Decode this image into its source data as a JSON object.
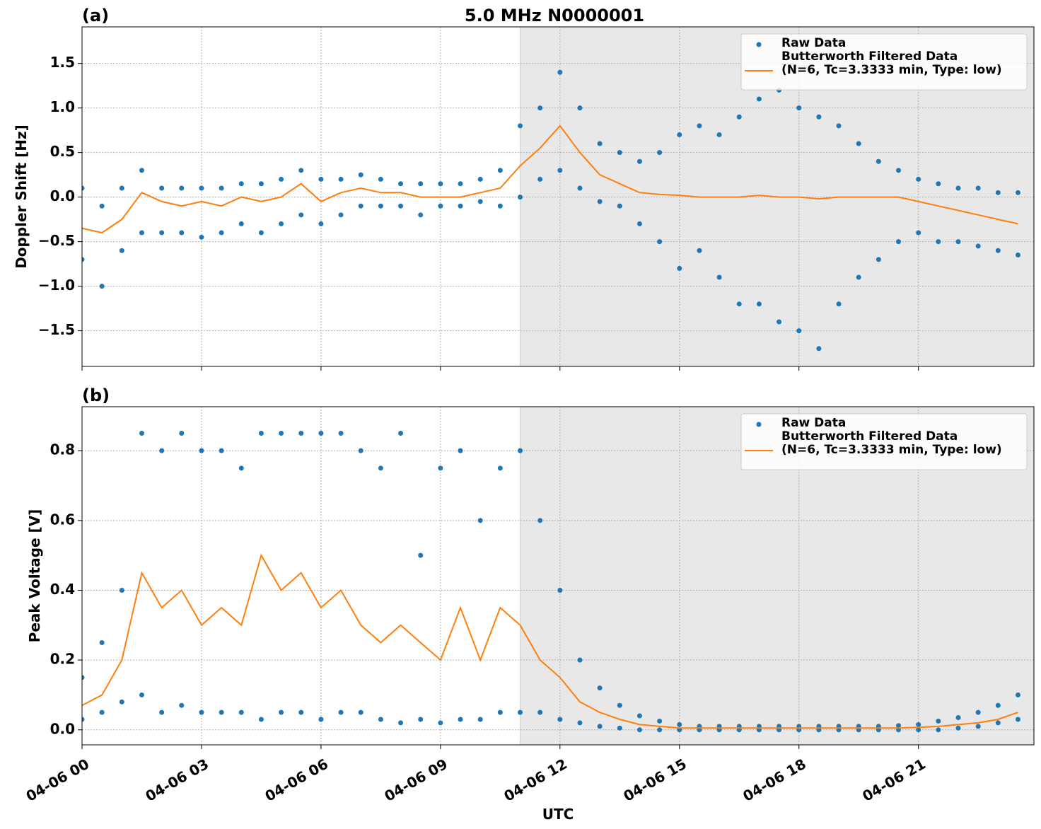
{
  "chart_data": [
    {
      "type": "scatter",
      "panel_label": "(a)",
      "title": "5.0 MHz N0000001",
      "ylabel": "Doppler Shift [Hz]",
      "xlim": [
        0,
        23.9
      ],
      "ylim": [
        -1.9,
        1.91
      ],
      "shade_xlim": [
        11,
        23.9
      ],
      "grid": true,
      "legend": "upper right",
      "xticks": [
        0,
        3,
        6,
        9,
        12,
        15,
        18,
        21
      ],
      "yticks": [
        {
          "value": -1.5,
          "label": "−1.5"
        },
        {
          "value": -1.0,
          "label": "−1.0"
        },
        {
          "value": -0.5,
          "label": "−0.5"
        },
        {
          "value": 0.0,
          "label": "0.0"
        },
        {
          "value": 0.5,
          "label": "0.5"
        },
        {
          "value": 1.0,
          "label": "1.0"
        },
        {
          "value": 1.5,
          "label": "1.5"
        }
      ],
      "series": [
        {
          "name": "Raw Data",
          "color": "#1f77b4",
          "mode": "markers",
          "x": [
            0,
            0,
            0.5,
            0.5,
            1,
            1,
            1.5,
            1.5,
            2,
            2,
            2.5,
            2.5,
            3,
            3,
            3.5,
            3.5,
            4,
            4,
            4.5,
            4.5,
            5,
            5,
            5.5,
            5.5,
            6,
            6,
            6.5,
            6.5,
            7,
            7,
            7.5,
            7.5,
            8,
            8,
            8.5,
            8.5,
            9,
            9,
            9.5,
            9.5,
            10,
            10,
            10.5,
            10.5,
            11,
            11,
            11.5,
            11.5,
            12,
            12,
            12.5,
            12.5,
            13,
            13,
            13.5,
            13.5,
            14,
            14,
            14.5,
            14.5,
            15,
            15,
            15.5,
            15.5,
            16,
            16,
            16.5,
            16.5,
            17,
            17,
            17.5,
            17.5,
            18,
            18,
            18.5,
            18.5,
            19,
            19,
            19.5,
            19.5,
            20,
            20,
            20.5,
            20.5,
            21,
            21,
            21.5,
            21.5,
            22,
            22,
            22.5,
            22.5,
            23,
            23,
            23.5,
            23.5
          ],
          "values": [
            0.1,
            -0.7,
            -0.1,
            -1.0,
            0.1,
            -0.6,
            0.3,
            -0.4,
            0.1,
            -0.4,
            0.1,
            -0.4,
            0.1,
            -0.45,
            0.1,
            -0.4,
            0.15,
            -0.3,
            0.15,
            -0.4,
            0.2,
            -0.3,
            0.3,
            -0.2,
            0.2,
            -0.3,
            0.2,
            -0.2,
            0.25,
            -0.1,
            0.2,
            -0.1,
            0.15,
            -0.1,
            0.15,
            -0.2,
            0.15,
            -0.1,
            0.15,
            -0.1,
            0.2,
            -0.05,
            0.3,
            -0.1,
            0.8,
            0.0,
            1.0,
            0.2,
            1.4,
            0.3,
            1.0,
            0.1,
            0.6,
            -0.05,
            0.5,
            -0.1,
            0.4,
            -0.3,
            0.5,
            -0.5,
            0.7,
            -0.8,
            0.8,
            -0.6,
            0.7,
            -0.9,
            0.9,
            -1.2,
            1.1,
            -1.2,
            1.2,
            -1.4,
            1.0,
            -1.5,
            0.9,
            -1.7,
            0.8,
            -1.2,
            0.6,
            -0.9,
            0.4,
            -0.7,
            0.3,
            -0.5,
            0.2,
            -0.4,
            0.15,
            -0.5,
            0.1,
            -0.5,
            0.1,
            -0.55,
            0.05,
            -0.6,
            0.05,
            -0.65
          ]
        },
        {
          "name": "Butterworth Filtered Data\n(N=6, Tc=3.3333 min, Type: low)",
          "color": "#ff7f0e",
          "mode": "line",
          "x": [
            0,
            0.5,
            1,
            1.5,
            2,
            2.5,
            3,
            3.5,
            4,
            4.5,
            5,
            5.5,
            6,
            6.5,
            7,
            7.5,
            8,
            8.5,
            9,
            9.5,
            10,
            10.5,
            11,
            11.5,
            12,
            12.5,
            13,
            13.5,
            14,
            14.5,
            15,
            15.5,
            16,
            16.5,
            17,
            17.5,
            18,
            18.5,
            19,
            19.5,
            20,
            20.5,
            21,
            21.5,
            22,
            22.5,
            23,
            23.5
          ],
          "values": [
            -0.35,
            -0.4,
            -0.25,
            0.05,
            -0.05,
            -0.1,
            -0.05,
            -0.1,
            0.0,
            -0.05,
            0.0,
            0.15,
            -0.05,
            0.05,
            0.1,
            0.05,
            0.05,
            0.0,
            0.0,
            0.0,
            0.05,
            0.1,
            0.35,
            0.55,
            0.8,
            0.5,
            0.25,
            0.15,
            0.05,
            0.03,
            0.02,
            0.0,
            0.0,
            0.0,
            0.02,
            0.0,
            0.0,
            -0.02,
            0.0,
            0.0,
            0.0,
            0.0,
            -0.05,
            -0.1,
            -0.15,
            -0.2,
            -0.25,
            -0.3
          ]
        }
      ]
    },
    {
      "type": "scatter",
      "panel_label": "(b)",
      "ylabel": "Peak Voltage [V]",
      "xlabel": "UTC",
      "xlim": [
        0,
        23.9
      ],
      "ylim": [
        -0.043,
        0.926
      ],
      "shade_xlim": [
        11,
        23.9
      ],
      "grid": true,
      "legend": "upper right",
      "xticks": [
        {
          "value": 0,
          "label": "04-06 00"
        },
        {
          "value": 3,
          "label": "04-06 03"
        },
        {
          "value": 6,
          "label": "04-06 06"
        },
        {
          "value": 9,
          "label": "04-06 09"
        },
        {
          "value": 12,
          "label": "04-06 12"
        },
        {
          "value": 15,
          "label": "04-06 15"
        },
        {
          "value": 18,
          "label": "04-06 18"
        },
        {
          "value": 21,
          "label": "04-06 21"
        }
      ],
      "yticks": [
        {
          "value": 0.0,
          "label": "0.0"
        },
        {
          "value": 0.2,
          "label": "0.2"
        },
        {
          "value": 0.4,
          "label": "0.4"
        },
        {
          "value": 0.6,
          "label": "0.6"
        },
        {
          "value": 0.8,
          "label": "0.8"
        }
      ],
      "series": [
        {
          "name": "Raw Data",
          "color": "#1f77b4",
          "mode": "markers",
          "x": [
            0,
            0,
            0.5,
            0.5,
            1,
            1,
            1.5,
            1.5,
            2,
            2,
            2.5,
            2.5,
            3,
            3,
            3.5,
            3.5,
            4,
            4,
            4.5,
            4.5,
            5,
            5,
            5.5,
            5.5,
            6,
            6,
            6.5,
            6.5,
            7,
            7,
            7.5,
            7.5,
            8,
            8,
            8.5,
            8.5,
            9,
            9,
            9.5,
            9.5,
            10,
            10,
            10.5,
            10.5,
            11,
            11,
            11.5,
            11.5,
            12,
            12,
            12.5,
            12.5,
            13,
            13,
            13.5,
            13.5,
            14,
            14,
            14.5,
            14.5,
            15,
            15,
            15.5,
            15.5,
            16,
            16,
            16.5,
            16.5,
            17,
            17,
            17.5,
            17.5,
            18,
            18,
            18.5,
            18.5,
            19,
            19,
            19.5,
            19.5,
            20,
            20,
            20.5,
            20.5,
            21,
            21,
            21.5,
            21.5,
            22,
            22,
            22.5,
            22.5,
            23,
            23,
            23.5,
            23.5
          ],
          "values": [
            0.15,
            0.03,
            0.25,
            0.05,
            0.4,
            0.08,
            0.85,
            0.1,
            0.8,
            0.05,
            0.85,
            0.07,
            0.8,
            0.05,
            0.8,
            0.05,
            0.75,
            0.05,
            0.85,
            0.03,
            0.85,
            0.05,
            0.85,
            0.05,
            0.85,
            0.03,
            0.85,
            0.05,
            0.8,
            0.05,
            0.75,
            0.03,
            0.85,
            0.02,
            0.5,
            0.03,
            0.75,
            0.02,
            0.8,
            0.03,
            0.6,
            0.03,
            0.75,
            0.05,
            0.8,
            0.05,
            0.6,
            0.05,
            0.4,
            0.03,
            0.2,
            0.02,
            0.12,
            0.01,
            0.07,
            0.005,
            0.04,
            0.0,
            0.025,
            0.0,
            0.015,
            0.0,
            0.01,
            0.0,
            0.01,
            0.0,
            0.01,
            0.0,
            0.01,
            0.0,
            0.01,
            0.0,
            0.01,
            0.0,
            0.01,
            0.0,
            0.01,
            0.0,
            0.01,
            0.0,
            0.01,
            0.0,
            0.012,
            0.0,
            0.015,
            0.0,
            0.025,
            0.0,
            0.035,
            0.005,
            0.05,
            0.01,
            0.07,
            0.02,
            0.1,
            0.03
          ]
        },
        {
          "name": "Butterworth Filtered Data\n(N=6, Tc=3.3333 min, Type: low)",
          "color": "#ff7f0e",
          "mode": "line",
          "x": [
            0,
            0.5,
            1,
            1.5,
            2,
            2.5,
            3,
            3.5,
            4,
            4.5,
            5,
            5.5,
            6,
            6.5,
            7,
            7.5,
            8,
            8.5,
            9,
            9.5,
            10,
            10.5,
            11,
            11.5,
            12,
            12.5,
            13,
            13.5,
            14,
            14.5,
            15,
            15.5,
            16,
            16.5,
            17,
            17.5,
            18,
            18.5,
            19,
            19.5,
            20,
            20.5,
            21,
            21.5,
            22,
            22.5,
            23,
            23.5
          ],
          "values": [
            0.07,
            0.1,
            0.2,
            0.45,
            0.35,
            0.4,
            0.3,
            0.35,
            0.3,
            0.5,
            0.4,
            0.45,
            0.35,
            0.4,
            0.3,
            0.25,
            0.3,
            0.25,
            0.2,
            0.35,
            0.2,
            0.35,
            0.3,
            0.2,
            0.15,
            0.08,
            0.05,
            0.03,
            0.015,
            0.01,
            0.005,
            0.005,
            0.005,
            0.005,
            0.005,
            0.005,
            0.005,
            0.005,
            0.005,
            0.005,
            0.005,
            0.005,
            0.007,
            0.01,
            0.015,
            0.02,
            0.03,
            0.05
          ]
        }
      ]
    }
  ]
}
